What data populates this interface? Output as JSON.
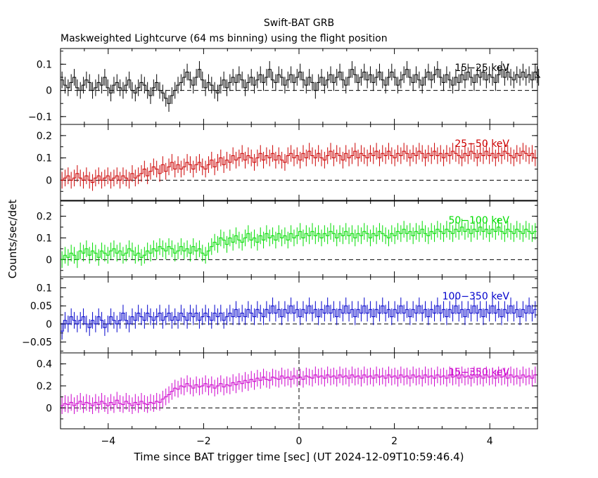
{
  "title": "Swift-BAT GRB",
  "subtitle": "Maskweighted Lightcurve (64 ms binning) using the flight position",
  "chart_data": {
    "type": "line",
    "title": "Swift-BAT GRB",
    "subtitle": "Maskweighted Lightcurve (64 ms binning) using the flight position",
    "xlabel": "Time since BAT trigger time [sec] (UT 2024-12-09T10:59:46.4)",
    "ylabel": "Counts/sec/det",
    "xlim": [
      -5,
      5
    ],
    "xticks": [
      -4,
      -2,
      0,
      2,
      4
    ],
    "xtick_labels": [
      "−4",
      "−2",
      "0",
      "2",
      "4"
    ],
    "bin_width_s": 0.064,
    "trigger_line_x": 0,
    "panels": [
      {
        "name": "15−25 keV",
        "color": "#000000",
        "ylim": [
          -0.13,
          0.16
        ],
        "yticks": [
          -0.1,
          0,
          0.1
        ],
        "ytick_labels": [
          "−0.1",
          "0",
          "0.1"
        ],
        "values": [
          0.04,
          0.02,
          0.01,
          0.03,
          0.05,
          0.01,
          0.0,
          0.02,
          0.04,
          0.03,
          0.0,
          0.01,
          0.03,
          0.02,
          0.05,
          0.01,
          -0.01,
          0.02,
          0.03,
          0.01,
          0.0,
          0.02,
          0.04,
          0.0,
          -0.01,
          0.01,
          0.03,
          0.02,
          0.0,
          -0.02,
          0.01,
          0.03,
          0.0,
          -0.01,
          -0.03,
          -0.05,
          -0.02,
          0.0,
          0.02,
          0.03,
          0.05,
          0.07,
          0.04,
          0.02,
          0.05,
          0.08,
          0.04,
          0.01,
          0.03,
          0.02,
          0.0,
          -0.01,
          0.02,
          0.04,
          0.01,
          0.03,
          0.05,
          0.03,
          0.06,
          0.04,
          0.01,
          0.03,
          0.05,
          0.02,
          0.04,
          0.06,
          0.03,
          0.05,
          0.08,
          0.04,
          0.03,
          0.06,
          0.05,
          0.02,
          0.04,
          0.06,
          0.03,
          0.05,
          0.07,
          0.04,
          0.02,
          0.05,
          0.03,
          0.0,
          0.03,
          0.05,
          0.02,
          0.04,
          0.06,
          0.03,
          0.05,
          0.07,
          0.04,
          0.02,
          0.05,
          0.08,
          0.06,
          0.03,
          0.05,
          0.07,
          0.04,
          0.06,
          0.03,
          0.05,
          0.07,
          0.04,
          0.02,
          0.05,
          0.07,
          0.05,
          0.02,
          0.04,
          0.06,
          0.08,
          0.05,
          0.03,
          0.06,
          0.04,
          0.02,
          0.05,
          0.07,
          0.04,
          0.06,
          0.08,
          0.05,
          0.03,
          0.06,
          0.04,
          0.02,
          0.05,
          0.03,
          0.06,
          0.04,
          0.07,
          0.05,
          0.03,
          0.06,
          0.05,
          0.07,
          0.04,
          0.06,
          0.05,
          0.03,
          0.06,
          0.08,
          0.05,
          0.07,
          0.05,
          0.04,
          0.06,
          0.05,
          0.07,
          0.05,
          0.06,
          0.04,
          0.07,
          0.06,
          0.05
        ]
      },
      {
        "name": "25−50 keV",
        "color": "#cc0000",
        "ylim": [
          -0.09,
          0.25
        ],
        "yticks": [
          0,
          0.1,
          0.2
        ],
        "ytick_labels": [
          "0",
          "0.1",
          "0.2"
        ],
        "values": [
          0.0,
          0.01,
          0.02,
          0.0,
          0.01,
          0.03,
          0.01,
          0.0,
          0.02,
          0.0,
          -0.01,
          0.01,
          0.02,
          0.0,
          0.01,
          0.02,
          0.0,
          0.01,
          0.02,
          0.0,
          0.02,
          0.01,
          0.0,
          0.03,
          0.01,
          0.02,
          0.03,
          0.05,
          0.02,
          0.04,
          0.06,
          0.05,
          0.03,
          0.07,
          0.04,
          0.06,
          0.08,
          0.05,
          0.07,
          0.05,
          0.06,
          0.08,
          0.07,
          0.05,
          0.07,
          0.08,
          0.06,
          0.05,
          0.07,
          0.09,
          0.06,
          0.08,
          0.1,
          0.07,
          0.09,
          0.08,
          0.11,
          0.09,
          0.1,
          0.12,
          0.09,
          0.11,
          0.1,
          0.08,
          0.1,
          0.12,
          0.09,
          0.11,
          0.1,
          0.12,
          0.09,
          0.11,
          0.09,
          0.08,
          0.11,
          0.12,
          0.1,
          0.11,
          0.09,
          0.12,
          0.1,
          0.13,
          0.11,
          0.1,
          0.12,
          0.1,
          0.09,
          0.11,
          0.13,
          0.1,
          0.12,
          0.11,
          0.09,
          0.12,
          0.1,
          0.11,
          0.13,
          0.1,
          0.12,
          0.11,
          0.1,
          0.12,
          0.11,
          0.13,
          0.1,
          0.12,
          0.11,
          0.13,
          0.11,
          0.1,
          0.12,
          0.11,
          0.13,
          0.12,
          0.1,
          0.12,
          0.11,
          0.13,
          0.12,
          0.1,
          0.12,
          0.11,
          0.13,
          0.11,
          0.12,
          0.1,
          0.12,
          0.11,
          0.13,
          0.12,
          0.11,
          0.1,
          0.12,
          0.11,
          0.13,
          0.12,
          0.1,
          0.12,
          0.11,
          0.13,
          0.11,
          0.12,
          0.1,
          0.12,
          0.11,
          0.13,
          0.12,
          0.11,
          0.1,
          0.12,
          0.11,
          0.13,
          0.12,
          0.11,
          0.12,
          0.1
        ]
      },
      {
        "name": "50−100 keV",
        "color": "#00dd00",
        "ylim": [
          -0.08,
          0.27
        ],
        "yticks": [
          0,
          0.1,
          0.2
        ],
        "ytick_labels": [
          "0",
          "0.1",
          "0.2"
        ],
        "values": [
          0.0,
          0.02,
          0.01,
          0.03,
          0.02,
          0.0,
          0.04,
          0.03,
          0.05,
          0.02,
          0.04,
          0.03,
          0.01,
          0.04,
          0.03,
          0.02,
          0.04,
          0.05,
          0.03,
          0.04,
          0.02,
          0.03,
          0.05,
          0.04,
          0.02,
          0.03,
          0.01,
          0.02,
          0.04,
          0.03,
          0.05,
          0.04,
          0.06,
          0.05,
          0.04,
          0.06,
          0.05,
          0.03,
          0.04,
          0.06,
          0.04,
          0.05,
          0.03,
          0.06,
          0.04,
          0.05,
          0.03,
          0.02,
          0.04,
          0.06,
          0.08,
          0.07,
          0.1,
          0.09,
          0.07,
          0.1,
          0.08,
          0.11,
          0.09,
          0.08,
          0.1,
          0.12,
          0.09,
          0.1,
          0.08,
          0.11,
          0.09,
          0.12,
          0.1,
          0.11,
          0.09,
          0.12,
          0.1,
          0.11,
          0.09,
          0.12,
          0.1,
          0.11,
          0.13,
          0.1,
          0.12,
          0.11,
          0.13,
          0.11,
          0.12,
          0.1,
          0.12,
          0.11,
          0.13,
          0.12,
          0.1,
          0.12,
          0.11,
          0.13,
          0.11,
          0.12,
          0.1,
          0.12,
          0.11,
          0.13,
          0.12,
          0.1,
          0.12,
          0.11,
          0.13,
          0.12,
          0.11,
          0.1,
          0.12,
          0.11,
          0.13,
          0.12,
          0.14,
          0.12,
          0.13,
          0.11,
          0.13,
          0.12,
          0.14,
          0.12,
          0.11,
          0.13,
          0.12,
          0.14,
          0.13,
          0.12,
          0.14,
          0.13,
          0.12,
          0.14,
          0.13,
          0.15,
          0.13,
          0.14,
          0.12,
          0.14,
          0.13,
          0.15,
          0.13,
          0.14,
          0.12,
          0.14,
          0.13,
          0.15,
          0.13,
          0.12,
          0.14,
          0.13,
          0.12,
          0.14,
          0.13,
          0.12,
          0.14,
          0.13,
          0.12,
          0.13
        ]
      },
      {
        "name": "100−350 keV",
        "color": "#0000cc",
        "ylim": [
          -0.08,
          0.13
        ],
        "yticks": [
          -0.05,
          0,
          0.05,
          0.1
        ],
        "ytick_labels": [
          "−0.05",
          "0",
          "0.05",
          "0.1"
        ],
        "values": [
          -0.02,
          0.01,
          0.0,
          0.02,
          0.01,
          0.0,
          0.01,
          0.02,
          0.0,
          -0.01,
          0.01,
          0.0,
          0.02,
          0.01,
          -0.01,
          0.0,
          0.02,
          0.01,
          0.0,
          0.01,
          0.03,
          0.01,
          0.0,
          0.02,
          0.01,
          0.03,
          0.02,
          0.01,
          0.03,
          0.02,
          0.01,
          0.02,
          0.03,
          0.01,
          0.02,
          0.03,
          0.01,
          0.02,
          0.01,
          0.03,
          0.02,
          0.01,
          0.03,
          0.02,
          0.03,
          0.01,
          0.02,
          0.03,
          0.02,
          0.01,
          0.03,
          0.02,
          0.03,
          0.01,
          0.02,
          0.03,
          0.02,
          0.04,
          0.02,
          0.03,
          0.02,
          0.04,
          0.03,
          0.02,
          0.04,
          0.03,
          0.02,
          0.04,
          0.03,
          0.05,
          0.03,
          0.04,
          0.02,
          0.04,
          0.03,
          0.05,
          0.03,
          0.04,
          0.02,
          0.04,
          0.03,
          0.05,
          0.03,
          0.04,
          0.02,
          0.04,
          0.03,
          0.05,
          0.03,
          0.04,
          0.02,
          0.04,
          0.03,
          0.05,
          0.03,
          0.04,
          0.02,
          0.04,
          0.03,
          0.05,
          0.03,
          0.04,
          0.02,
          0.04,
          0.03,
          0.05,
          0.03,
          0.04,
          0.02,
          0.04,
          0.03,
          0.05,
          0.03,
          0.04,
          0.02,
          0.04,
          0.03,
          0.05,
          0.03,
          0.04,
          0.02,
          0.04,
          0.03,
          0.05,
          0.03,
          0.04,
          0.02,
          0.04,
          0.03,
          0.05,
          0.03,
          0.04,
          0.02,
          0.04,
          0.03,
          0.05,
          0.03,
          0.04,
          0.02,
          0.04,
          0.03,
          0.05,
          0.03,
          0.04,
          0.02,
          0.04,
          0.03,
          0.05,
          0.03,
          0.04,
          0.02,
          0.04,
          0.03,
          0.05,
          0.03,
          0.04
        ]
      },
      {
        "name": "15−350 keV",
        "color": "#cc00cc",
        "ylim": [
          -0.19,
          0.5
        ],
        "yticks": [
          0,
          0.2,
          0.4
        ],
        "ytick_labels": [
          "0",
          "0.2",
          "0.4"
        ],
        "values": [
          0.02,
          0.04,
          0.03,
          0.05,
          0.02,
          0.04,
          0.06,
          0.03,
          0.05,
          0.04,
          0.02,
          0.05,
          0.03,
          0.06,
          0.04,
          0.02,
          0.05,
          0.03,
          0.07,
          0.04,
          0.03,
          0.06,
          0.04,
          0.02,
          0.05,
          0.03,
          0.06,
          0.04,
          0.03,
          0.05,
          0.04,
          0.06,
          0.05,
          0.08,
          0.1,
          0.12,
          0.15,
          0.18,
          0.17,
          0.2,
          0.19,
          0.22,
          0.2,
          0.18,
          0.21,
          0.19,
          0.2,
          0.22,
          0.19,
          0.21,
          0.18,
          0.2,
          0.22,
          0.19,
          0.21,
          0.2,
          0.23,
          0.21,
          0.24,
          0.22,
          0.25,
          0.23,
          0.26,
          0.24,
          0.27,
          0.25,
          0.28,
          0.26,
          0.25,
          0.28,
          0.27,
          0.26,
          0.29,
          0.27,
          0.28,
          0.26,
          0.29,
          0.27,
          0.28,
          0.26,
          0.29,
          0.28,
          0.27,
          0.3,
          0.28,
          0.29,
          0.27,
          0.3,
          0.28,
          0.29,
          0.27,
          0.3,
          0.28,
          0.29,
          0.27,
          0.3,
          0.28,
          0.29,
          0.27,
          0.3,
          0.28,
          0.29,
          0.27,
          0.3,
          0.28,
          0.29,
          0.27,
          0.3,
          0.28,
          0.29,
          0.27,
          0.3,
          0.28,
          0.29,
          0.27,
          0.3,
          0.28,
          0.29,
          0.27,
          0.3,
          0.28,
          0.29,
          0.27,
          0.3,
          0.28,
          0.29,
          0.27,
          0.3,
          0.28,
          0.29,
          0.27,
          0.3,
          0.28,
          0.29,
          0.27,
          0.3,
          0.28,
          0.29,
          0.27,
          0.3,
          0.28,
          0.29,
          0.27,
          0.3,
          0.28,
          0.29,
          0.27,
          0.3,
          0.28,
          0.29,
          0.27,
          0.3,
          0.28,
          0.29,
          0.27,
          0.3
        ]
      }
    ]
  }
}
